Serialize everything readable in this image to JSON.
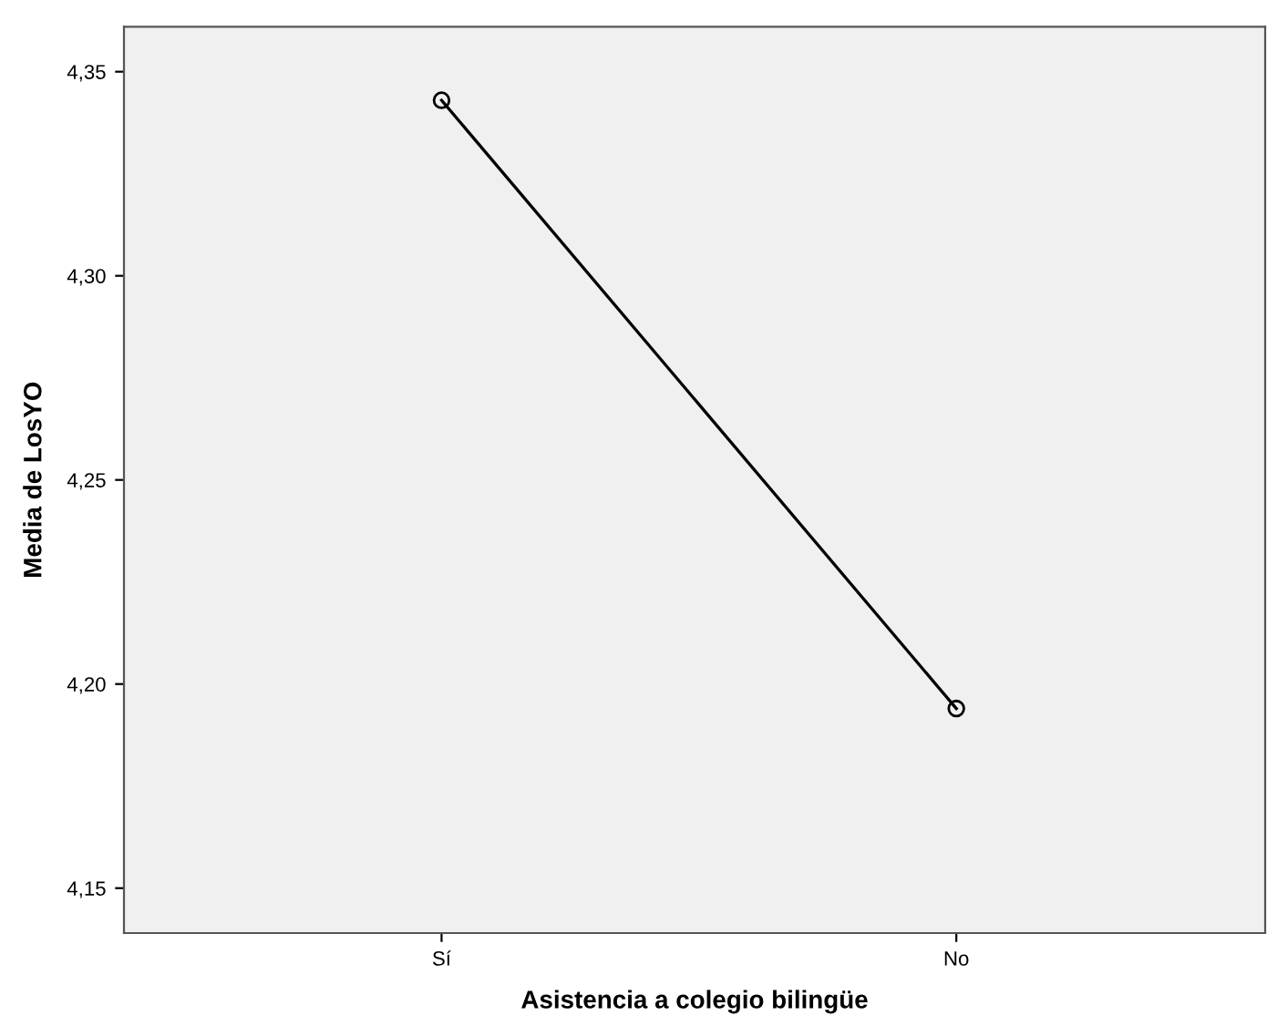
{
  "chart_data": {
    "type": "line",
    "xlabel": "Asistencia a colegio bilingüe",
    "ylabel": "Media de LosYO",
    "categories": [
      "Sí",
      "No"
    ],
    "series": [
      {
        "color": "#000000",
        "values": [
          4.343,
          4.194
        ]
      }
    ],
    "ylim": [
      4.139,
      4.361
    ],
    "yticks": [
      {
        "value": 4.15,
        "label": "4,15"
      },
      {
        "value": 4.2,
        "label": "4,20"
      },
      {
        "value": 4.25,
        "label": "4,25"
      },
      {
        "value": 4.3,
        "label": "4,30"
      },
      {
        "value": 4.35,
        "label": "4,35"
      }
    ],
    "marker": "circle",
    "line_style": "solid",
    "grid": false,
    "legend": false
  }
}
